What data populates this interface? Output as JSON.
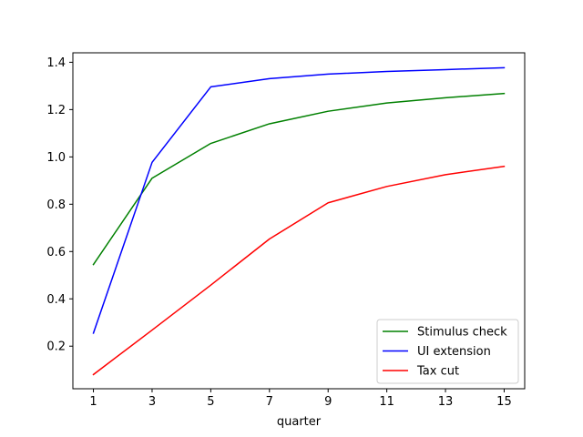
{
  "chart_data": {
    "type": "line",
    "title": "",
    "xlabel": "quarter",
    "ylabel": "",
    "x": [
      1,
      3,
      5,
      7,
      9,
      11,
      13,
      15
    ],
    "xticks": [
      1,
      3,
      5,
      7,
      9,
      11,
      13,
      15
    ],
    "yticks": [
      0.2,
      0.4,
      0.6,
      0.8,
      1.0,
      1.2,
      1.4
    ],
    "ytick_labels": [
      "0.2",
      "0.4",
      "0.6",
      "0.8",
      "1.0",
      "1.2",
      "1.4"
    ],
    "xlim": [
      0.3,
      15.7
    ],
    "ylim": [
      0.02,
      1.44
    ],
    "grid": false,
    "legend_position": "bottom-right",
    "series": [
      {
        "name": "Stimulus check",
        "color": "#008000",
        "values": [
          0.545,
          0.91,
          1.057,
          1.14,
          1.193,
          1.228,
          1.25,
          1.268
        ]
      },
      {
        "name": "UI extension",
        "color": "#0000ff",
        "values": [
          0.255,
          0.977,
          1.296,
          1.331,
          1.35,
          1.361,
          1.369,
          1.377
        ]
      },
      {
        "name": "Tax cut",
        "color": "#ff0000",
        "values": [
          0.08,
          0.268,
          0.458,
          0.653,
          0.806,
          0.875,
          0.925,
          0.96
        ]
      }
    ]
  }
}
